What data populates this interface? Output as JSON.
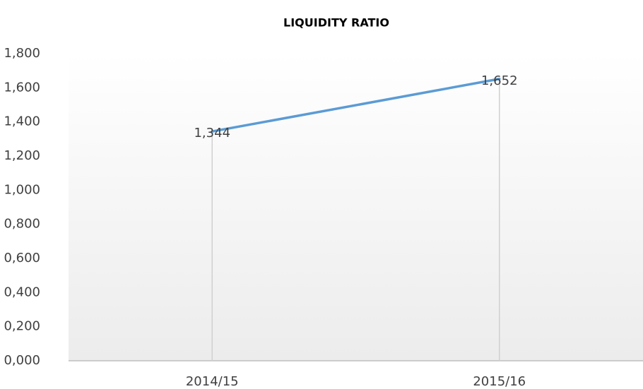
{
  "chart_data": {
    "type": "line",
    "title": "LIQUIDITY RATIO",
    "categories": [
      "2014/15",
      "2015/16"
    ],
    "series": [
      {
        "name": "Liquidity ratio",
        "color": "#5b9bd5",
        "values": [
          1.344,
          1.652
        ],
        "value_labels": [
          "1,344",
          "1,652"
        ]
      }
    ],
    "ylim": [
      0,
      1.8
    ],
    "yticks": [
      {
        "value": 0,
        "label": "0,000"
      },
      {
        "value": 0.2,
        "label": "0,200"
      },
      {
        "value": 0.4,
        "label": "0,400"
      },
      {
        "value": 0.6,
        "label": "0,600"
      },
      {
        "value": 0.8,
        "label": "0,800"
      },
      {
        "value": 1.0,
        "label": "1,000"
      },
      {
        "value": 1.2,
        "label": "1,200"
      },
      {
        "value": 1.4,
        "label": "1,400"
      },
      {
        "value": 1.6,
        "label": "1,600"
      },
      {
        "value": 1.8,
        "label": "1,800"
      }
    ],
    "grid": false
  }
}
